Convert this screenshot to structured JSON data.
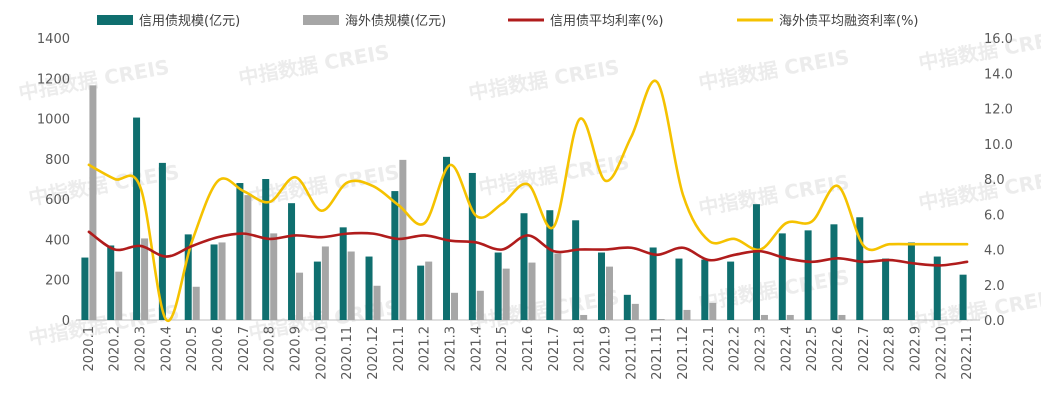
{
  "chart_data": {
    "type": "bar+line",
    "categories": [
      "2020.1",
      "2020.2",
      "2020.3",
      "2020.4",
      "2020.5",
      "2020.6",
      "2020.7",
      "2020.8",
      "2020.9",
      "2020.10",
      "2020.11",
      "2020.12",
      "2021.1",
      "2021.2",
      "2021.3",
      "2021.4",
      "2021.5",
      "2021.6",
      "2021.7",
      "2021.8",
      "2021.9",
      "2021.10",
      "2021.11",
      "2021.12",
      "2022.1",
      "2022.2",
      "2022.3",
      "2022.4",
      "2022.5",
      "2022.6",
      "2022.7",
      "2022.8",
      "2022.9",
      "2022.10",
      "2022.11"
    ],
    "y_left": {
      "min": 0,
      "max": 1400,
      "step": 200,
      "ticks": [
        "0",
        "200",
        "400",
        "600",
        "800",
        "1000",
        "1200",
        "1400"
      ]
    },
    "y_right": {
      "min": 0,
      "max": 16,
      "step": 2,
      "ticks": [
        "0.0",
        "2.0",
        "4.0",
        "6.0",
        "8.0",
        "10.0",
        "12.0",
        "14.0",
        "16.0"
      ]
    },
    "series": [
      {
        "name": "信用债规模(亿元)",
        "type": "bar",
        "axis": "left",
        "color": "#0f6f6f",
        "values": [
          310,
          370,
          1005,
          780,
          425,
          375,
          680,
          700,
          580,
          290,
          460,
          315,
          640,
          270,
          810,
          730,
          335,
          530,
          545,
          495,
          335,
          125,
          360,
          305,
          300,
          290,
          575,
          430,
          445,
          475,
          510,
          305,
          385,
          315,
          225
        ]
      },
      {
        "name": "海外债规模(亿元)",
        "type": "bar",
        "axis": "left",
        "color": "#a6a6a6",
        "values": [
          1165,
          240,
          405,
          0,
          165,
          385,
          620,
          430,
          235,
          365,
          340,
          170,
          795,
          290,
          135,
          145,
          255,
          285,
          330,
          25,
          265,
          80,
          5,
          50,
          85,
          0,
          25,
          25,
          0,
          25,
          0,
          0,
          0,
          0,
          0
        ]
      },
      {
        "name": "信用债平均利率(%)",
        "type": "line",
        "axis": "right",
        "color": "#b01c1c",
        "values": [
          5.0,
          4.0,
          4.2,
          3.6,
          4.2,
          4.7,
          4.9,
          4.6,
          4.8,
          4.7,
          4.9,
          4.9,
          4.6,
          4.8,
          4.5,
          4.4,
          4.0,
          4.8,
          3.9,
          4.0,
          4.0,
          4.1,
          3.7,
          4.1,
          3.4,
          3.7,
          3.9,
          3.5,
          3.3,
          3.5,
          3.3,
          3.4,
          3.2,
          3.1,
          3.3
        ]
      },
      {
        "name": "海外债平均融资利率(%)",
        "type": "line",
        "axis": "right",
        "color": "#f5c200",
        "values": [
          8.8,
          8.0,
          7.5,
          0.0,
          4.5,
          7.9,
          7.3,
          6.7,
          8.1,
          6.2,
          7.8,
          7.6,
          6.5,
          5.5,
          8.8,
          5.9,
          6.6,
          7.7,
          5.3,
          11.4,
          7.9,
          10.4,
          13.5,
          7.1,
          4.5,
          4.6,
          4.0,
          5.5,
          5.6,
          7.6,
          4.2,
          4.3,
          4.3,
          4.3,
          4.3
        ]
      }
    ],
    "watermark": "中指数据 CREIS",
    "legend_position": "top"
  }
}
